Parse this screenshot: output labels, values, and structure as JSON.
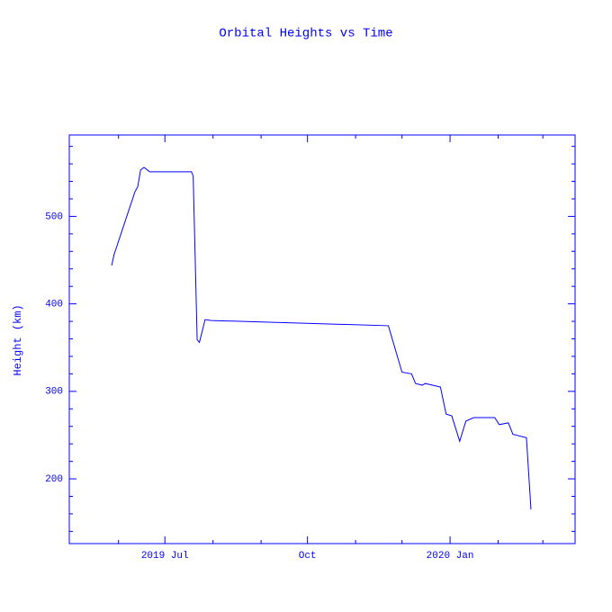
{
  "chart_data": {
    "type": "line",
    "title": "Orbital Heights vs Time",
    "y_label": "Height (km)",
    "color": "#0000ff",
    "x": [
      2019.402,
      2019.406,
      2019.443,
      2019.448,
      2019.453,
      2019.459,
      2019.469,
      2019.543,
      2019.546,
      2019.553,
      2019.557,
      2019.567,
      2019.578,
      2019.891,
      2019.915,
      2019.932,
      2019.939,
      2019.951,
      2019.956,
      2019.983,
      2019.993,
      2020.003,
      2020.017,
      2020.028,
      2020.042,
      2020.079,
      2020.087,
      2020.103,
      2020.111,
      2020.135,
      2020.143
    ],
    "values": [
      444,
      456,
      528,
      534,
      553,
      556,
      551,
      551,
      546,
      359,
      356,
      382,
      381,
      375,
      322,
      320,
      309,
      307,
      309,
      305,
      274,
      272,
      243,
      266,
      270,
      270,
      262,
      264,
      251,
      247,
      165
    ],
    "xlim": [
      2019.327,
      2020.221
    ],
    "xticks": [
      {
        "value": 2019.496,
        "label": "2019 Jul"
      },
      {
        "value": 2019.748,
        "label": "Oct"
      },
      {
        "value": 2020.0,
        "label": "2020 Jan"
      }
    ],
    "xminorticks": [
      2019.414,
      2019.581,
      2019.666,
      2019.833,
      2019.915,
      2020.085,
      2020.164
    ],
    "ylim": [
      126,
      593
    ],
    "yticks": [
      200,
      300,
      400,
      500
    ],
    "yminorticks": [
      140,
      160,
      180,
      220,
      240,
      260,
      280,
      320,
      340,
      360,
      380,
      420,
      440,
      460,
      480,
      520,
      540,
      560,
      580
    ]
  }
}
